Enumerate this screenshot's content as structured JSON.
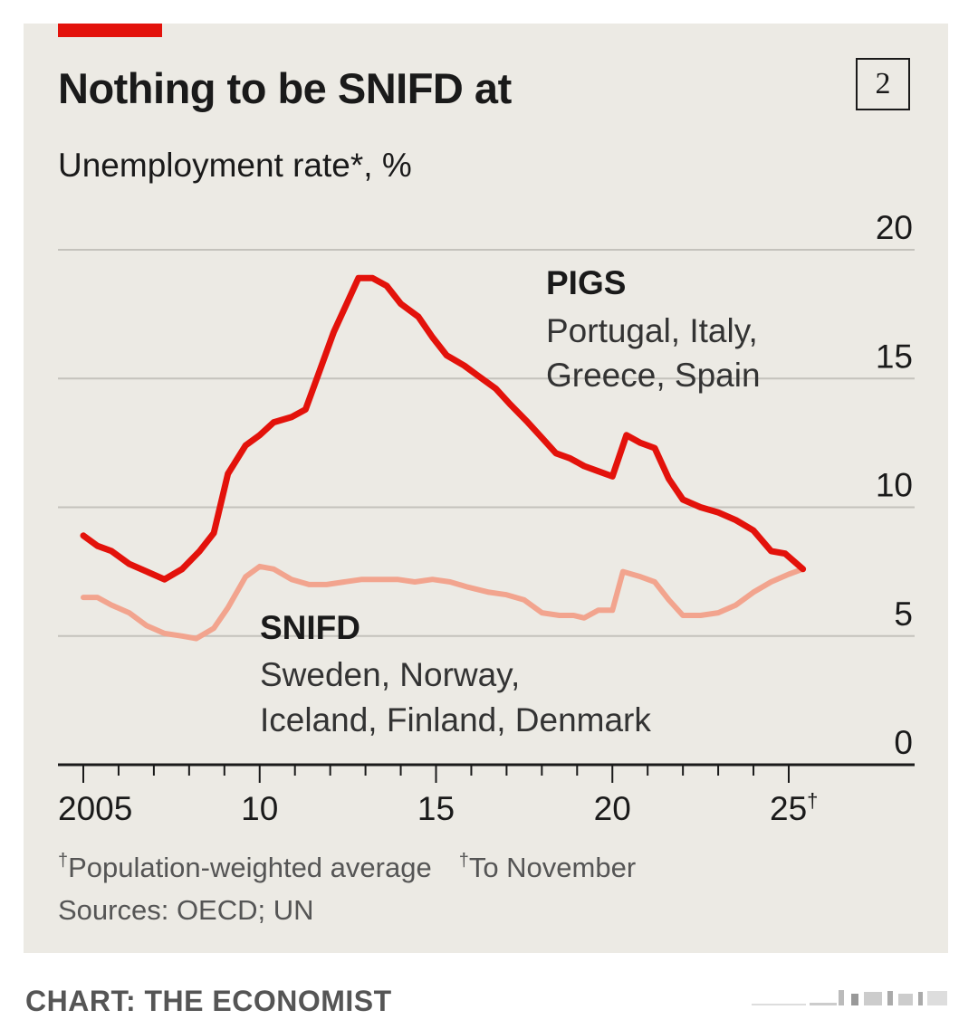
{
  "title": "Nothing to be SNIFD at",
  "chart_number": "2",
  "subtitle": "Unemployment rate*, %",
  "colors": {
    "pigs": "#e3120b",
    "snifd": "#f2a48e",
    "background": "#eceae4",
    "accent": "#e3120b"
  },
  "labels": {
    "pigs_name": "PIGS",
    "pigs_line1": "Portugal, Italy,",
    "pigs_line2": "Greece, Spain",
    "snifd_name": "SNIFD",
    "snifd_line1": "Sweden, Norway,",
    "snifd_line2": "Iceland, Finland, Denmark"
  },
  "footnote": {
    "marker": "†",
    "text1": "Population-weighted average",
    "text2": "To November"
  },
  "sources": "Sources: OECD; UN",
  "credit": "CHART: THE ECONOMIST",
  "chart_data": {
    "type": "line",
    "title": "Nothing to be SNIFD at",
    "ylabel": "Unemployment rate*, %",
    "ylim": [
      0,
      20
    ],
    "xlim": [
      2004.8,
      2025.8
    ],
    "yticks": [
      {
        "value": 0,
        "label": "0"
      },
      {
        "value": 5,
        "label": "5"
      },
      {
        "value": 10,
        "label": "10"
      },
      {
        "value": 15,
        "label": "15"
      },
      {
        "value": 20,
        "label": "20"
      }
    ],
    "xticks": [
      {
        "value": 2005,
        "label": "2005"
      },
      {
        "value": 2010,
        "label": "10"
      },
      {
        "value": 2015,
        "label": "15"
      },
      {
        "value": 2020,
        "label": "20"
      },
      {
        "value": 2025,
        "label": "25†"
      }
    ],
    "grid": true,
    "series": [
      {
        "name": "PIGS",
        "points": [
          [
            2005.0,
            8.9
          ],
          [
            2005.4,
            8.5
          ],
          [
            2005.8,
            8.3
          ],
          [
            2006.3,
            7.8
          ],
          [
            2006.8,
            7.5
          ],
          [
            2007.3,
            7.2
          ],
          [
            2007.8,
            7.6
          ],
          [
            2008.3,
            8.3
          ],
          [
            2008.7,
            9.0
          ],
          [
            2009.1,
            11.3
          ],
          [
            2009.6,
            12.4
          ],
          [
            2010.0,
            12.8
          ],
          [
            2010.4,
            13.3
          ],
          [
            2010.9,
            13.5
          ],
          [
            2011.3,
            13.8
          ],
          [
            2011.7,
            15.3
          ],
          [
            2012.1,
            16.8
          ],
          [
            2012.5,
            18.0
          ],
          [
            2012.8,
            18.9
          ],
          [
            2013.2,
            18.9
          ],
          [
            2013.6,
            18.6
          ],
          [
            2014.0,
            17.9
          ],
          [
            2014.5,
            17.4
          ],
          [
            2014.9,
            16.6
          ],
          [
            2015.3,
            15.9
          ],
          [
            2015.8,
            15.5
          ],
          [
            2016.2,
            15.1
          ],
          [
            2016.7,
            14.6
          ],
          [
            2017.1,
            14.0
          ],
          [
            2017.6,
            13.3
          ],
          [
            2018.0,
            12.7
          ],
          [
            2018.4,
            12.1
          ],
          [
            2018.8,
            11.9
          ],
          [
            2019.2,
            11.6
          ],
          [
            2019.6,
            11.4
          ],
          [
            2020.0,
            11.2
          ],
          [
            2020.4,
            12.8
          ],
          [
            2020.8,
            12.5
          ],
          [
            2021.2,
            12.3
          ],
          [
            2021.6,
            11.1
          ],
          [
            2022.0,
            10.3
          ],
          [
            2022.5,
            10.0
          ],
          [
            2023.0,
            9.8
          ],
          [
            2023.5,
            9.5
          ],
          [
            2024.0,
            9.1
          ],
          [
            2024.5,
            8.3
          ],
          [
            2024.9,
            8.2
          ],
          [
            2025.4,
            7.6
          ]
        ]
      },
      {
        "name": "SNIFD",
        "points": [
          [
            2005.0,
            6.5
          ],
          [
            2005.4,
            6.5
          ],
          [
            2005.8,
            6.2
          ],
          [
            2006.3,
            5.9
          ],
          [
            2006.8,
            5.4
          ],
          [
            2007.3,
            5.1
          ],
          [
            2007.8,
            5.0
          ],
          [
            2008.2,
            4.9
          ],
          [
            2008.7,
            5.3
          ],
          [
            2009.1,
            6.1
          ],
          [
            2009.6,
            7.3
          ],
          [
            2010.0,
            7.7
          ],
          [
            2010.4,
            7.6
          ],
          [
            2010.9,
            7.2
          ],
          [
            2011.4,
            7.0
          ],
          [
            2011.9,
            7.0
          ],
          [
            2012.4,
            7.1
          ],
          [
            2012.9,
            7.2
          ],
          [
            2013.4,
            7.2
          ],
          [
            2013.9,
            7.2
          ],
          [
            2014.4,
            7.1
          ],
          [
            2014.9,
            7.2
          ],
          [
            2015.4,
            7.1
          ],
          [
            2015.9,
            6.9
          ],
          [
            2016.5,
            6.7
          ],
          [
            2017.0,
            6.6
          ],
          [
            2017.5,
            6.4
          ],
          [
            2018.0,
            5.9
          ],
          [
            2018.5,
            5.8
          ],
          [
            2018.9,
            5.8
          ],
          [
            2019.2,
            5.7
          ],
          [
            2019.6,
            6.0
          ],
          [
            2020.0,
            6.0
          ],
          [
            2020.3,
            7.5
          ],
          [
            2020.8,
            7.3
          ],
          [
            2021.2,
            7.1
          ],
          [
            2021.6,
            6.4
          ],
          [
            2022.0,
            5.8
          ],
          [
            2022.5,
            5.8
          ],
          [
            2023.0,
            5.9
          ],
          [
            2023.5,
            6.2
          ],
          [
            2024.0,
            6.7
          ],
          [
            2024.5,
            7.1
          ],
          [
            2025.0,
            7.4
          ],
          [
            2025.4,
            7.6
          ]
        ]
      }
    ]
  }
}
